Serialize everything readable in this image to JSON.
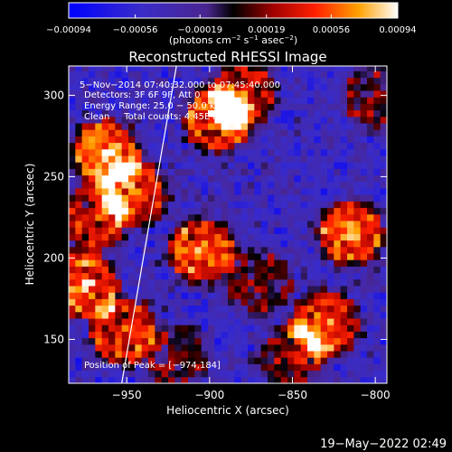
{
  "chart_data": {
    "type": "heatmap",
    "title": "Reconstructed RHESSI Image",
    "xlabel": "Heliocentric X (arcsec)",
    "ylabel": "Heliocentric Y (arcsec)",
    "xlim": [
      -985,
      -793
    ],
    "ylim": [
      123,
      318
    ],
    "x_ticks": [
      -950,
      -900,
      -850,
      -800
    ],
    "y_ticks": [
      150,
      200,
      250,
      300
    ],
    "x_tick_labels": [
      "−950",
      "−900",
      "−850",
      "−800"
    ],
    "y_tick_labels": [
      "150",
      "200",
      "250",
      "300"
    ],
    "colorbar": {
      "range": [
        -0.00094,
        0.00094
      ],
      "ticks": [
        -0.00094,
        -0.00056,
        -0.00019,
        0.00019,
        0.00056,
        0.00094
      ],
      "tick_labels": [
        "−0.00094",
        "−0.00056",
        "−0.00019",
        "0.00019",
        "0.00056",
        "0.00094"
      ],
      "label_main": "(photons cm",
      "label_exp1": "−2",
      "label_mid1": " s",
      "label_exp2": "−1",
      "label_mid2": " asec",
      "label_exp3": "−2",
      "label_end": ")"
    },
    "annotations": {
      "time": "5−Nov−2014 07:40:32.000 to 07:45:40.000",
      "detectors": "Detectors: 3F 6F 9F, Att 0",
      "energy": "Energy Range: 25.0 − 50.0 keV",
      "clean": "Clean     Total counts: 4.45E+03",
      "peak": "Position of Peak = [−974,184]"
    },
    "limb_line": [
      [
        -953.0,
        123.0
      ],
      [
        -920.0,
        318.0
      ]
    ],
    "sources": [
      {
        "x": -962,
        "y": 265,
        "peak": 0.00094
      },
      {
        "x": -945,
        "y": 240,
        "peak": 0.0008
      },
      {
        "x": -975,
        "y": 184,
        "peak": 0.00094
      },
      {
        "x": -970,
        "y": 225,
        "peak": 0.0007
      },
      {
        "x": -952,
        "y": 155,
        "peak": 0.0008
      },
      {
        "x": -905,
        "y": 205,
        "peak": 0.0009
      },
      {
        "x": -895,
        "y": 285,
        "peak": 0.0009
      },
      {
        "x": -880,
        "y": 300,
        "peak": 0.0007
      },
      {
        "x": -815,
        "y": 215,
        "peak": 0.0009
      },
      {
        "x": -830,
        "y": 160,
        "peak": 0.0008
      },
      {
        "x": -850,
        "y": 140,
        "peak": 0.0006
      },
      {
        "x": -870,
        "y": 185,
        "peak": 0.0005
      },
      {
        "x": -800,
        "y": 300,
        "peak": 0.0005
      },
      {
        "x": -920,
        "y": 140,
        "peak": 0.0004
      }
    ]
  },
  "footer": {
    "date": "19−May−2022 02:49"
  }
}
